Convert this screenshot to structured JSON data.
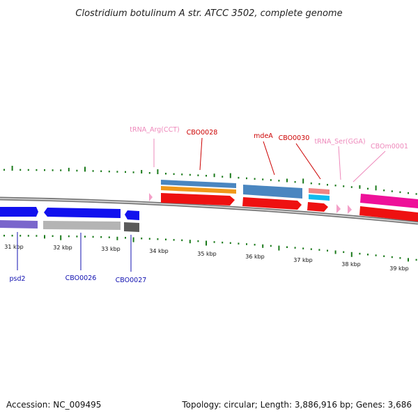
{
  "title": "Clostridium botulinum A str. ATCC 3502, complete genome",
  "footer": {
    "accession": "Accession: NC_009495",
    "summary": "Topology: circular; Length: 3,886,916 bp; Genes: 3,686"
  },
  "ticks": [
    "31 kbp",
    "32 kbp",
    "33 kbp",
    "34 kbp",
    "35 kbp",
    "36 kbp",
    "37 kbp",
    "38 kbp",
    "39 kbp"
  ],
  "labels": {
    "psd2": "psd2",
    "cbo0026": "CBO0026",
    "cbo0027": "CBO0027",
    "trna_arg": "tRNA_Arg(CCT)",
    "cbo0028": "CBO0028",
    "mdea": "mdeA",
    "cbo0030": "CBO0030",
    "trna_ser": "tRNA_Ser(GGA)",
    "cbom0001": "CBOm0001"
  },
  "colors": {
    "forward_cds": "#ee1111",
    "reverse_cds": "#1111ee",
    "trna": "#f4a0c8",
    "ncrna": "#ee1199",
    "cog_blue": "#4a86c0",
    "cog_orange": "#f0981a",
    "cog_purple": "#7a66cc",
    "cog_gray": "#b4b4b4",
    "cog_dark": "#5a5a5a",
    "cog_salmon": "#f08484",
    "cog_cyan": "#11bbee",
    "label_forward": "#cc0000",
    "label_reverse": "#1010b0",
    "label_rna": "#ee88bb",
    "backbone": "#8a8a8a",
    "tick": "#1a7a1a"
  }
}
